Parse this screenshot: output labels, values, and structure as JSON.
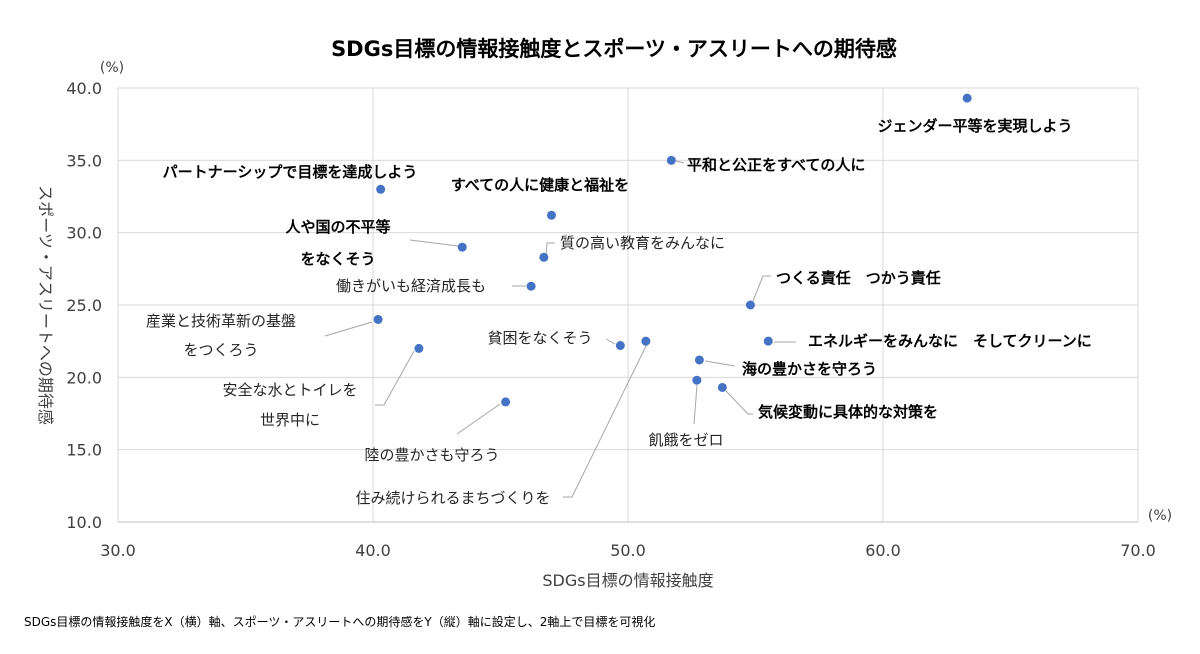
{
  "chart_data": {
    "type": "scatter",
    "title": "SDGs目標の情報接触度とスポーツ・アスリートへの期待感",
    "xlabel": "SDGs目標の情報接触度",
    "ylabel": "スポーツ・アスリートへの期待感",
    "x_unit": "(%)",
    "y_unit": "(%)",
    "xlim": [
      30,
      70
    ],
    "ylim": [
      10,
      40
    ],
    "x_ticks": [
      "30.0",
      "40.0",
      "50.0",
      "60.0",
      "70.0"
    ],
    "y_ticks": [
      "10.0",
      "15.0",
      "20.0",
      "25.0",
      "30.0",
      "35.0",
      "40.0"
    ],
    "grid": true,
    "marker_color": "#4472c4",
    "points": [
      {
        "label": "ジェンダー平等を実現しよう",
        "x": 63.3,
        "y": 39.3,
        "bold": true
      },
      {
        "label": "平和と公正をすべての人に",
        "x": 51.7,
        "y": 35.0,
        "bold": true
      },
      {
        "label": "パートナーシップで目標を達成しよう",
        "x": 40.3,
        "y": 33.0,
        "bold": true
      },
      {
        "label": "すべての人に健康と福祉を",
        "x": 47.0,
        "y": 31.2,
        "bold": true
      },
      {
        "label": "人や国の不平等\nをなくそう",
        "x": 43.5,
        "y": 29.0,
        "bold": true
      },
      {
        "label": "質の高い教育をみんなに",
        "x": 46.7,
        "y": 28.3,
        "bold": false
      },
      {
        "label": "働きがいも経済成長も",
        "x": 46.2,
        "y": 26.3,
        "bold": false
      },
      {
        "label": "つくる責任　つかう責任",
        "x": 54.8,
        "y": 25.0,
        "bold": true
      },
      {
        "label": "産業と技術革新の基盤\nをつくろう",
        "x": 40.2,
        "y": 24.0,
        "bold": false
      },
      {
        "label": "エネルギーをみんなに　そしてクリーンに",
        "x": 55.5,
        "y": 22.5,
        "bold": true
      },
      {
        "label": "住み続けられるまちづくりを",
        "x": 50.7,
        "y": 22.5,
        "bold": false
      },
      {
        "label": "貧困をなくそう",
        "x": 49.7,
        "y": 22.2,
        "bold": false
      },
      {
        "label": "安全な水とトイレを\n世界中に",
        "x": 41.8,
        "y": 22.0,
        "bold": false
      },
      {
        "label": "海の豊かさを守ろう",
        "x": 52.8,
        "y": 21.2,
        "bold": true
      },
      {
        "label": "飢餓をゼロ",
        "x": 52.7,
        "y": 19.8,
        "bold": false
      },
      {
        "label": "気候変動に具体的な対策を",
        "x": 53.7,
        "y": 19.3,
        "bold": true
      },
      {
        "label": "陸の豊かさも守ろう",
        "x": 45.2,
        "y": 18.3,
        "bold": false
      }
    ]
  },
  "footnote": "SDGs目標の情報接触度をX（横）軸、スポーツ・アスリートへの期待感をY（縦）軸に設定し、2軸上で目標を可視化"
}
